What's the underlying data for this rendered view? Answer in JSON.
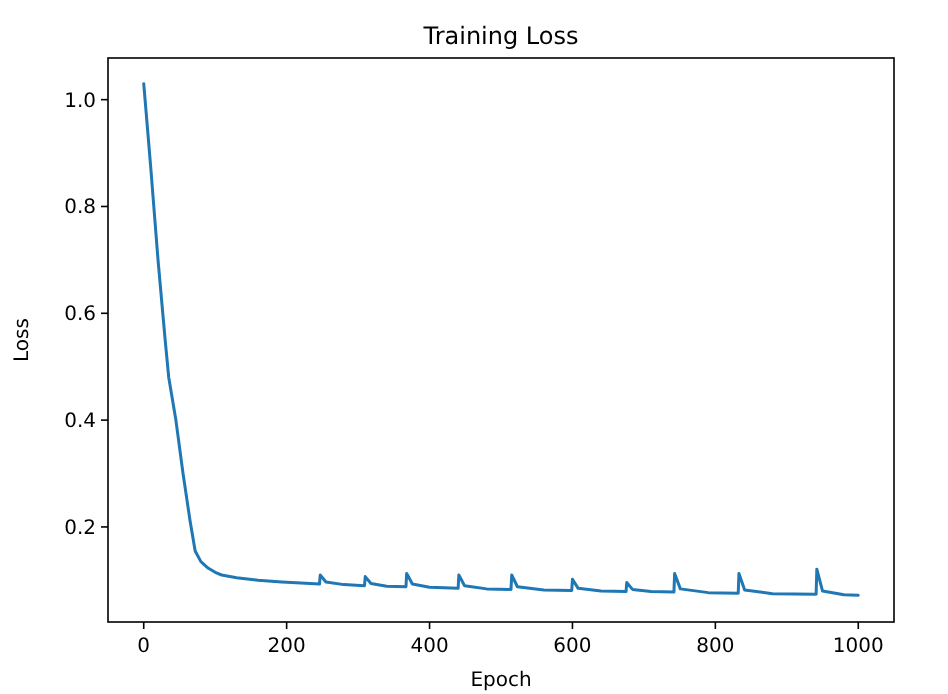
{
  "chart_data": {
    "type": "line",
    "title": "Training Loss",
    "xlabel": "Epoch",
    "ylabel": "Loss",
    "xlim": [
      -50,
      1050
    ],
    "ylim": [
      0.022,
      1.078
    ],
    "xticks": [
      0,
      200,
      400,
      600,
      800,
      1000
    ],
    "yticks": [
      0.2,
      0.4,
      0.6,
      0.8,
      {
        "value": 1.0,
        "label": "1.0"
      }
    ],
    "grid": false,
    "marker": "none",
    "line_style": "solid",
    "series": [
      {
        "color": "#1f77b4",
        "x": [
          0,
          10,
          20,
          30,
          35,
          45,
          55,
          65,
          72,
          80,
          90,
          100,
          109,
          130,
          160,
          193,
          220,
          246,
          247,
          255,
          280,
          309,
          310,
          318,
          340,
          367,
          368,
          376,
          400,
          440,
          441,
          449,
          480,
          514,
          515,
          523,
          560,
          599,
          600,
          608,
          640,
          675,
          676,
          684,
          710,
          742,
          743,
          751,
          790,
          832,
          833,
          841,
          880,
          941,
          942,
          950,
          980,
          1000
        ],
        "values": [
          1.03,
          0.87,
          0.7,
          0.55,
          0.48,
          0.4,
          0.3,
          0.21,
          0.155,
          0.135,
          0.123,
          0.115,
          0.11,
          0.105,
          0.1,
          0.097,
          0.095,
          0.093,
          0.11,
          0.097,
          0.092,
          0.09,
          0.107,
          0.094,
          0.089,
          0.088,
          0.113,
          0.093,
          0.087,
          0.085,
          0.11,
          0.09,
          0.084,
          0.083,
          0.11,
          0.088,
          0.082,
          0.081,
          0.102,
          0.085,
          0.08,
          0.079,
          0.096,
          0.083,
          0.079,
          0.078,
          0.113,
          0.084,
          0.077,
          0.076,
          0.113,
          0.082,
          0.075,
          0.074,
          0.121,
          0.08,
          0.073,
          0.072
        ]
      }
    ]
  }
}
